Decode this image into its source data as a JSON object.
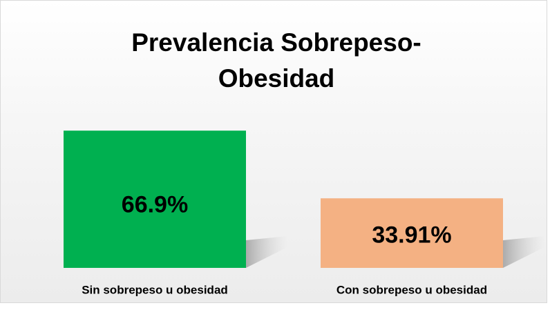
{
  "chart_data": {
    "type": "bar",
    "title": "Prevalencia Sobrepeso-Obesidad",
    "categories": [
      "Sin sobrepeso u obesidad",
      "Con sobrepeso u obesidad"
    ],
    "values": [
      66.9,
      33.91
    ],
    "value_labels": [
      "66.9%",
      "33.91%"
    ],
    "colors": [
      "#00b050",
      "#f4b183"
    ],
    "ylim": [
      0,
      70
    ]
  }
}
